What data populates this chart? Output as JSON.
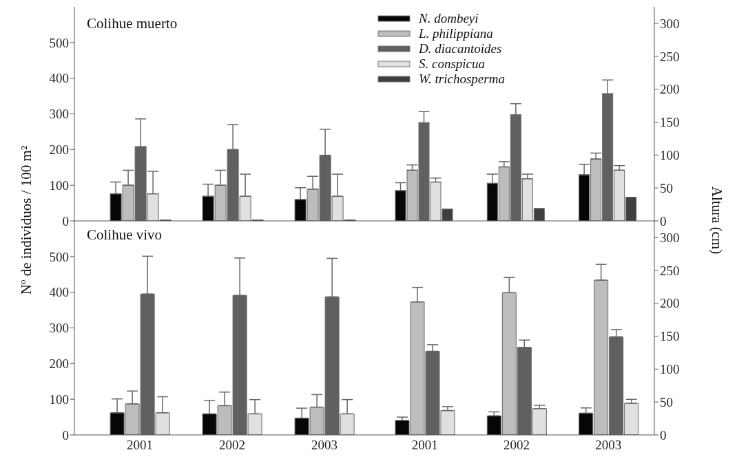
{
  "chart_data": [
    {
      "type": "bar",
      "title": "Colihue muerto",
      "ylabel": "Nº de individuos / 100 m²",
      "categories": [
        "2001",
        "2002",
        "2003"
      ],
      "ylim": [
        0,
        600
      ],
      "yticks": [
        0,
        100,
        200,
        300,
        400,
        500
      ],
      "tick_labels": "y",
      "legend": false,
      "series": [
        {
          "color": "#060606",
          "values": [
            76,
            69,
            60
          ],
          "errors": [
            [
              76,
              109
            ],
            [
              69,
              103
            ],
            [
              60,
              93
            ]
          ]
        },
        {
          "color": "#bdbdbd",
          "values": [
            100,
            100,
            89
          ],
          "errors": [
            [
              100,
              142
            ],
            [
              100,
              142
            ],
            [
              89,
              125
            ]
          ]
        },
        {
          "color": "#606060",
          "values": [
            208,
            200,
            184
          ],
          "errors": [
            [
              208,
              286
            ],
            [
              200,
              270
            ],
            [
              184,
              257
            ]
          ]
        },
        {
          "color": "#e0e0e0",
          "values": [
            76,
            69,
            69
          ],
          "errors": [
            [
              76,
              139
            ],
            [
              69,
              131
            ],
            [
              69,
              131
            ]
          ]
        },
        {
          "color": "#3f3f3f",
          "values": [
            3,
            3,
            3
          ]
        }
      ]
    },
    {
      "type": "bar",
      "y2label": "Altura (cm)",
      "categories": [
        "2001",
        "2002",
        "2003"
      ],
      "y2lim": [
        0,
        325
      ],
      "y2ticks": [
        0,
        50,
        100,
        150,
        200,
        250,
        300
      ],
      "tick_labels": "y",
      "legend": "top left",
      "series": [
        {
          "name": "N. dombeyi",
          "axis": "y2",
          "color": "#060606",
          "values": [
            46,
            57,
            70
          ],
          "errors": [
            [
              46,
              58
            ],
            [
              57,
              71
            ],
            [
              70,
              86
            ]
          ]
        },
        {
          "name": "L. philippiana",
          "axis": "y2",
          "color": "#bdbdbd",
          "values": [
            77,
            82,
            94
          ],
          "errors": [
            [
              77,
              85
            ],
            [
              82,
              90
            ],
            [
              94,
              103
            ]
          ]
        },
        {
          "name": "D. diacantoides",
          "axis": "y2",
          "color": "#606060",
          "values": [
            149,
            161,
            193
          ],
          "errors": [
            [
              149,
              166
            ],
            [
              161,
              178
            ],
            [
              193,
              214
            ]
          ]
        },
        {
          "name": "S. conspicua",
          "axis": "y2",
          "color": "#e0e0e0",
          "values": [
            59,
            64,
            77
          ],
          "errors": [
            [
              59,
              65
            ],
            [
              64,
              71
            ],
            [
              77,
              84
            ]
          ]
        },
        {
          "name": "W. trichosperma",
          "axis": "y2",
          "color": "#3f3f3f",
          "values": [
            18,
            19,
            36
          ]
        }
      ]
    },
    {
      "type": "bar",
      "title": "Colihue vivo",
      "categories": [
        "2001",
        "2002",
        "2003"
      ],
      "ylim": [
        0,
        600
      ],
      "yticks": [
        0,
        100,
        200,
        300,
        400,
        500
      ],
      "legend": false,
      "series": [
        {
          "color": "#060606",
          "values": [
            62,
            59,
            47
          ],
          "errors": [
            [
              62,
              101
            ],
            [
              59,
              97
            ],
            [
              47,
              75
            ]
          ]
        },
        {
          "color": "#bdbdbd",
          "values": [
            87,
            82,
            78
          ],
          "errors": [
            [
              87,
              123
            ],
            [
              82,
              120
            ],
            [
              78,
              113
            ]
          ]
        },
        {
          "color": "#606060",
          "values": [
            395,
            391,
            387
          ],
          "errors": [
            [
              395,
              501
            ],
            [
              391,
              496
            ],
            [
              387,
              495
            ]
          ]
        },
        {
          "color": "#e0e0e0",
          "values": [
            62,
            59,
            59
          ],
          "errors": [
            [
              62,
              107
            ],
            [
              59,
              99
            ],
            [
              59,
              99
            ]
          ]
        }
      ]
    },
    {
      "type": "bar",
      "categories": [
        "2001",
        "2002",
        "2003"
      ],
      "y2lim": [
        0,
        325
      ],
      "y2ticks": [
        0,
        50,
        100,
        150,
        200,
        250,
        300
      ],
      "legend": false,
      "series": [
        {
          "axis": "y2",
          "color": "#060606",
          "values": [
            22,
            29,
            33
          ],
          "errors": [
            [
              22,
              27
            ],
            [
              29,
              35
            ],
            [
              33,
              41
            ]
          ]
        },
        {
          "axis": "y2",
          "color": "#bdbdbd",
          "values": [
            202,
            216,
            235
          ],
          "errors": [
            [
              202,
              224
            ],
            [
              216,
              239
            ],
            [
              235,
              259
            ]
          ]
        },
        {
          "axis": "y2",
          "color": "#606060",
          "values": [
            127,
            133,
            149
          ],
          "errors": [
            [
              127,
              137
            ],
            [
              133,
              144
            ],
            [
              149,
              160
            ]
          ]
        },
        {
          "axis": "y2",
          "color": "#e0e0e0",
          "values": [
            37,
            40,
            48
          ],
          "errors": [
            [
              37,
              43
            ],
            [
              40,
              45
            ],
            [
              48,
              54
            ]
          ]
        }
      ]
    }
  ]
}
